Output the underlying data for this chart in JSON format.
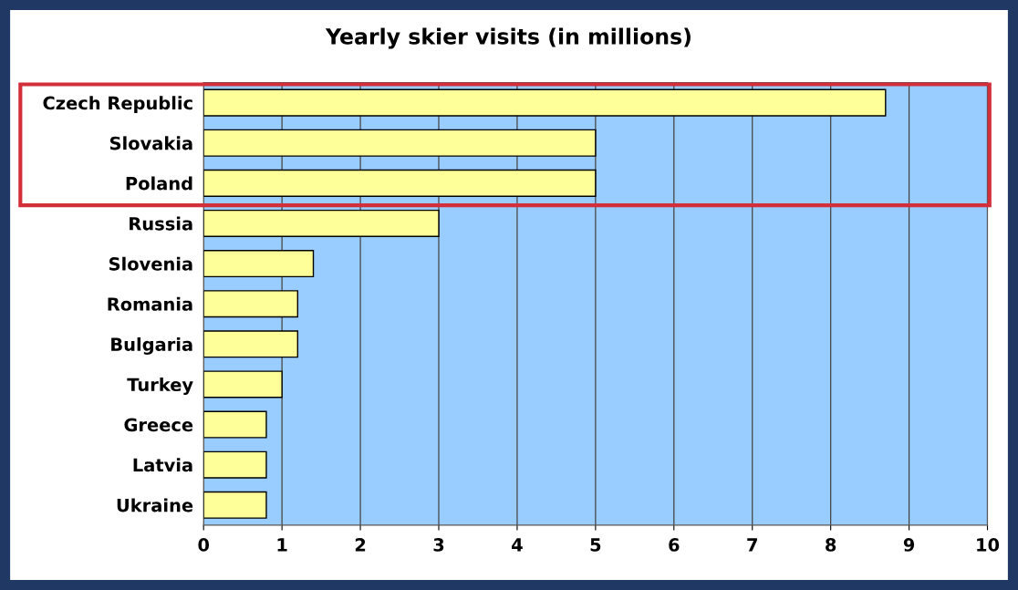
{
  "chart_data": {
    "type": "bar",
    "orientation": "horizontal",
    "title": "Yearly skier visits (in millions)",
    "categories": [
      "Czech Republic",
      "Slovakia",
      "Poland",
      "Russia",
      "Slovenia",
      "Romania",
      "Bulgaria",
      "Turkey",
      "Greece",
      "Latvia",
      "Ukraine"
    ],
    "values": [
      8.7,
      5,
      5,
      3,
      1.4,
      1.2,
      1.2,
      1,
      0.8,
      0.8,
      0.8
    ],
    "color": "#ffff99",
    "xlim": [
      0,
      10
    ],
    "xticks": [
      0,
      1,
      2,
      3,
      4,
      5,
      6,
      7,
      8,
      9,
      10
    ],
    "grid": "x"
  }
}
